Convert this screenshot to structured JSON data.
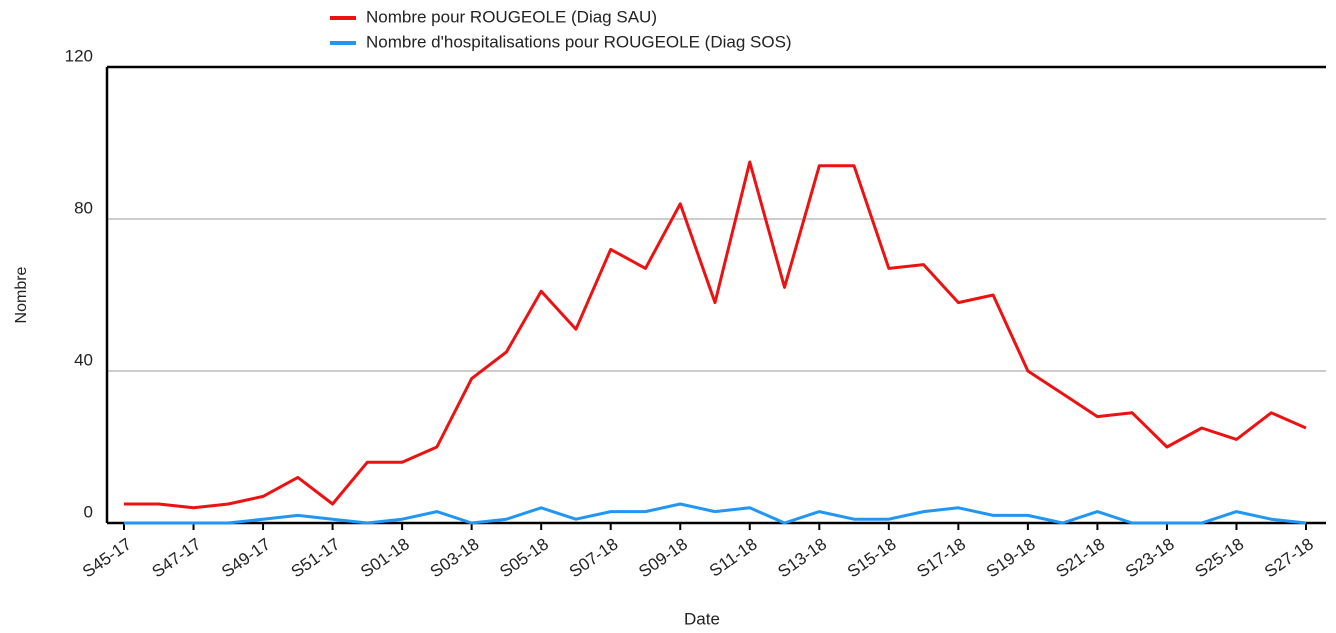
{
  "chart_data": {
    "type": "line",
    "x_label": "Date",
    "y_label": "Nombre",
    "categories": [
      "S45-17",
      null,
      "S47-17",
      null,
      "S49-17",
      null,
      "S51-17",
      null,
      "S01-18",
      null,
      "S03-18",
      null,
      "S05-18",
      null,
      "S07-18",
      null,
      "S09-18",
      null,
      "S11-18",
      null,
      "S13-18",
      null,
      "S15-18",
      null,
      "S17-18",
      null,
      "S19-18",
      null,
      "S21-18",
      null,
      "S23-18",
      null,
      "S25-18",
      null,
      "S27-18"
    ],
    "series": [
      {
        "name": "Nombre pour ROUGEOLE (Diag SAU)",
        "color": "#ee1111",
        "values": [
          5,
          5,
          4,
          5,
          7,
          12,
          5,
          16,
          16,
          20,
          38,
          45,
          61,
          51,
          72,
          67,
          84,
          58,
          95,
          62,
          94,
          94,
          67,
          68,
          58,
          60,
          40,
          34,
          28,
          29,
          20,
          25,
          22,
          29,
          25
        ]
      },
      {
        "name": "Nombre d'hospitalisations pour ROUGEOLE (Diag SOS)",
        "color": "#2196f3",
        "values": [
          0,
          0,
          0,
          0,
          1,
          2,
          1,
          0,
          1,
          3,
          0,
          1,
          4,
          1,
          3,
          3,
          5,
          3,
          4,
          0,
          3,
          1,
          1,
          3,
          4,
          2,
          2,
          0,
          3,
          0,
          0,
          0,
          3,
          1,
          0
        ]
      }
    ],
    "ylim": [
      0,
      120
    ],
    "yticks": [
      0,
      40,
      80,
      120
    ],
    "grid": true
  }
}
